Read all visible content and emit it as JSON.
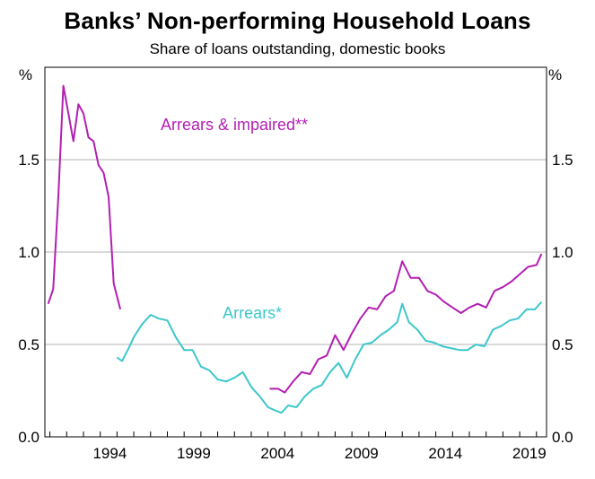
{
  "chart_data": {
    "type": "line",
    "title": "Banks’ Non-performing Household Loans",
    "subtitle": "Share of loans outstanding, domestic books",
    "ylabel_left": "%",
    "ylabel_right": "%",
    "ylim": [
      0,
      2.0
    ],
    "yticks": [
      "0.0",
      "0.5",
      "1.0",
      "1.5"
    ],
    "xlim": [
      1989.7,
      2019.6
    ],
    "xticks": [
      1994,
      1999,
      2004,
      2009,
      2014,
      2019
    ],
    "grid": true,
    "series": [
      {
        "name": "Arrears & impaired**",
        "color": "#b31fb3",
        "points": [
          [
            1989.9,
            0.72
          ],
          [
            1990.2,
            0.8
          ],
          [
            1990.5,
            1.3
          ],
          [
            1990.8,
            1.9
          ],
          [
            1991.1,
            1.75
          ],
          [
            1991.4,
            1.6
          ],
          [
            1991.7,
            1.8
          ],
          [
            1992.0,
            1.75
          ],
          [
            1992.3,
            1.62
          ],
          [
            1992.6,
            1.6
          ],
          [
            1992.9,
            1.47
          ],
          [
            1993.2,
            1.43
          ],
          [
            1993.5,
            1.3
          ],
          [
            1993.8,
            0.83
          ],
          [
            1994.2,
            0.69
          ],
          [
            2003.1,
            0.26
          ],
          [
            2003.6,
            0.26
          ],
          [
            2004.0,
            0.24
          ],
          [
            2004.5,
            0.3
          ],
          [
            2005.0,
            0.35
          ],
          [
            2005.5,
            0.34
          ],
          [
            2006.0,
            0.42
          ],
          [
            2006.5,
            0.44
          ],
          [
            2007.0,
            0.55
          ],
          [
            2007.5,
            0.47
          ],
          [
            2008.0,
            0.56
          ],
          [
            2008.5,
            0.64
          ],
          [
            2009.0,
            0.7
          ],
          [
            2009.5,
            0.69
          ],
          [
            2010.0,
            0.76
          ],
          [
            2010.5,
            0.79
          ],
          [
            2011.0,
            0.95
          ],
          [
            2011.5,
            0.86
          ],
          [
            2012.0,
            0.86
          ],
          [
            2012.5,
            0.79
          ],
          [
            2013.0,
            0.77
          ],
          [
            2013.5,
            0.73
          ],
          [
            2014.0,
            0.7
          ],
          [
            2014.5,
            0.67
          ],
          [
            2015.0,
            0.7
          ],
          [
            2015.5,
            0.72
          ],
          [
            2016.0,
            0.7
          ],
          [
            2016.5,
            0.79
          ],
          [
            2017.0,
            0.81
          ],
          [
            2017.5,
            0.84
          ],
          [
            2018.0,
            0.88
          ],
          [
            2018.5,
            0.92
          ],
          [
            2019.0,
            0.93
          ],
          [
            2019.3,
            0.99
          ]
        ]
      },
      {
        "name": "Arrears*",
        "color": "#3cc7cc",
        "points": [
          [
            1994.0,
            0.43
          ],
          [
            1994.3,
            0.41
          ],
          [
            1994.7,
            0.48
          ],
          [
            1995.0,
            0.54
          ],
          [
            1995.5,
            0.61
          ],
          [
            1996.0,
            0.66
          ],
          [
            1996.5,
            0.64
          ],
          [
            1997.0,
            0.63
          ],
          [
            1997.5,
            0.54
          ],
          [
            1998.0,
            0.47
          ],
          [
            1998.5,
            0.47
          ],
          [
            1999.0,
            0.38
          ],
          [
            1999.5,
            0.36
          ],
          [
            2000.0,
            0.31
          ],
          [
            2000.5,
            0.3
          ],
          [
            2001.0,
            0.32
          ],
          [
            2001.5,
            0.35
          ],
          [
            2002.0,
            0.27
          ],
          [
            2002.5,
            0.22
          ],
          [
            2003.0,
            0.16
          ],
          [
            2003.5,
            0.14
          ],
          [
            2003.8,
            0.13
          ],
          [
            2004.2,
            0.17
          ],
          [
            2004.7,
            0.16
          ],
          [
            2005.2,
            0.22
          ],
          [
            2005.7,
            0.26
          ],
          [
            2006.2,
            0.28
          ],
          [
            2006.7,
            0.35
          ],
          [
            2007.2,
            0.4
          ],
          [
            2007.7,
            0.32
          ],
          [
            2008.2,
            0.42
          ],
          [
            2008.7,
            0.5
          ],
          [
            2009.2,
            0.51
          ],
          [
            2009.7,
            0.55
          ],
          [
            2010.2,
            0.58
          ],
          [
            2010.7,
            0.62
          ],
          [
            2011.0,
            0.72
          ],
          [
            2011.4,
            0.62
          ],
          [
            2011.9,
            0.58
          ],
          [
            2012.4,
            0.52
          ],
          [
            2012.9,
            0.51
          ],
          [
            2013.4,
            0.49
          ],
          [
            2013.9,
            0.48
          ],
          [
            2014.4,
            0.47
          ],
          [
            2014.9,
            0.47
          ],
          [
            2015.4,
            0.5
          ],
          [
            2015.9,
            0.49
          ],
          [
            2016.4,
            0.58
          ],
          [
            2016.9,
            0.6
          ],
          [
            2017.4,
            0.63
          ],
          [
            2017.9,
            0.64
          ],
          [
            2018.4,
            0.69
          ],
          [
            2018.9,
            0.69
          ],
          [
            2019.3,
            0.73
          ]
        ]
      }
    ],
    "annotations": [
      {
        "text": "Arrears & impaired**",
        "series": 0,
        "x": 1996.6,
        "y": 1.66
      },
      {
        "text": "Arrears*",
        "series": 1,
        "x": 2000.3,
        "y": 0.64
      }
    ]
  }
}
